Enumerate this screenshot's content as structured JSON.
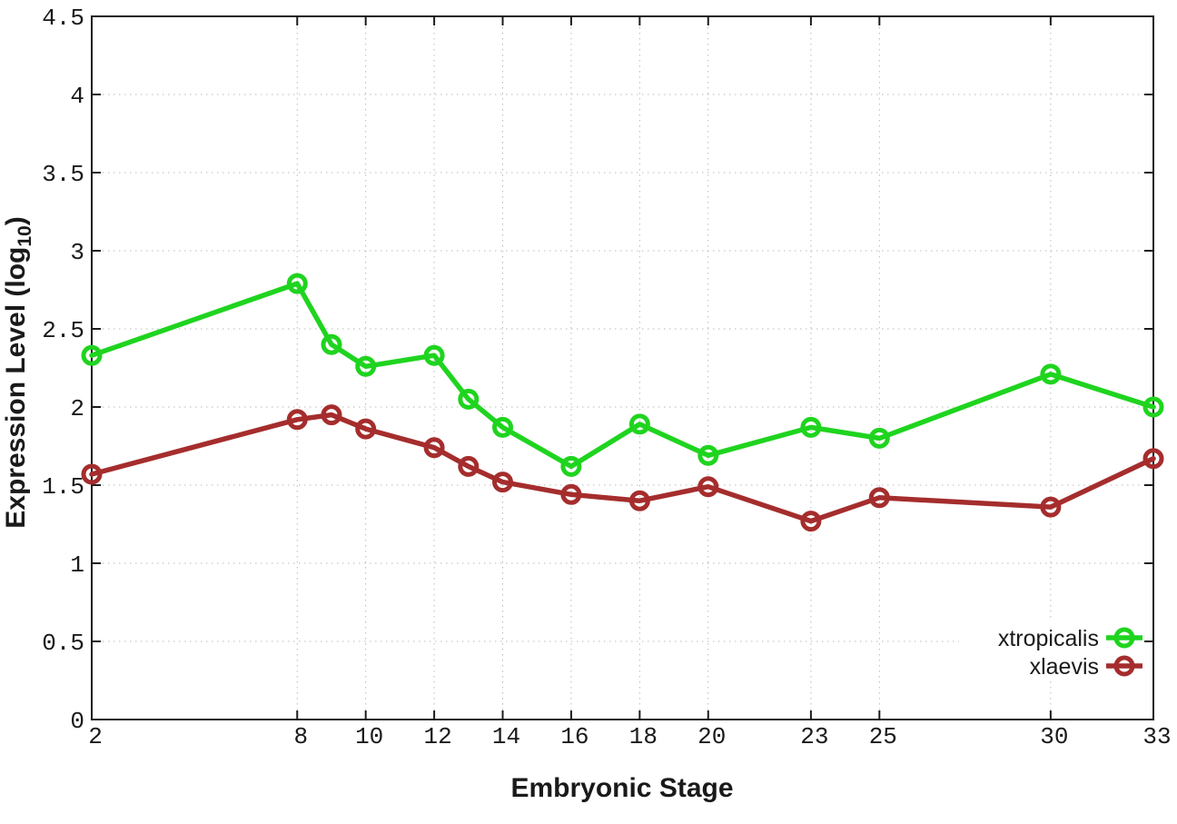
{
  "figure": {
    "background": "#ffffff"
  },
  "chart_data": {
    "type": "line",
    "title": "",
    "xlabel": "Embryonic Stage",
    "ylabel": "Expression Level (log10)",
    "ylabel_parts": {
      "prefix": "Expression Level (log",
      "subscript": "10",
      "suffix": ")"
    },
    "x": [
      2,
      8,
      9,
      10,
      12,
      13,
      14,
      16,
      18,
      20,
      23,
      25,
      30,
      33
    ],
    "series": [
      {
        "name": "xtropicalis",
        "color": "#1fd41f",
        "marker": "open-circle",
        "values": [
          2.33,
          2.79,
          2.4,
          2.26,
          2.33,
          2.05,
          1.87,
          1.62,
          1.89,
          1.69,
          1.87,
          1.8,
          2.21,
          2.0
        ]
      },
      {
        "name": "xlaevis",
        "color": "#a52d2d",
        "marker": "open-circle",
        "values": [
          1.57,
          1.92,
          1.95,
          1.86,
          1.74,
          1.62,
          1.52,
          1.44,
          1.4,
          1.49,
          1.27,
          1.42,
          1.36,
          1.67
        ]
      }
    ],
    "xlim": [
      2,
      33
    ],
    "ylim": [
      0,
      4.5
    ],
    "xticks": [
      2,
      8,
      10,
      12,
      14,
      16,
      18,
      20,
      23,
      25,
      30,
      33
    ],
    "yticks": [
      0,
      0.5,
      1,
      1.5,
      2,
      2.5,
      3,
      3.5,
      4,
      4.5
    ],
    "ytick_labels": [
      "0",
      "0.5",
      "1",
      "1.5",
      "2",
      "2.5",
      "3",
      "3.5",
      "4",
      "4.5"
    ],
    "grid": true,
    "legend": {
      "position": "bottom-right-inside",
      "entries": [
        "xtropicalis",
        "xlaevis"
      ]
    },
    "colors": {
      "axis": "#1c1c1c",
      "grid": "#b9b9b9",
      "text": "#1a1a1a",
      "background": "#ffffff"
    }
  }
}
